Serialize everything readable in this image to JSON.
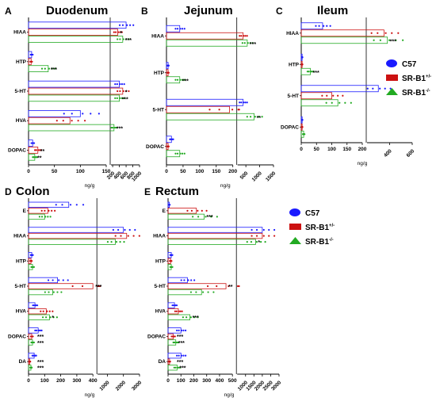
{
  "colors": {
    "C57": "#1a1aff",
    "SR-B1+/-": "#cc1111",
    "SR-B1-/-": "#22aa22"
  },
  "legend": {
    "entries": [
      {
        "key": "C57",
        "base": "C57",
        "sup": ""
      },
      {
        "key": "SR-B1+/-",
        "base": "SR-B1",
        "sup": "+/-"
      },
      {
        "key": "SR-B1-/-",
        "base": "SR-B1",
        "sup": "-/-"
      }
    ]
  },
  "chart_data": [
    {
      "type": "bar",
      "panel": "A",
      "title": "Duodenum",
      "xlabel": "ng/g",
      "orientation": "horizontal",
      "categories": [
        "HIAA",
        "HTP",
        "5-HT",
        "HVA",
        "DOPAC"
      ],
      "series": [
        {
          "name": "C57",
          "values": [
            600,
            6,
            400,
            100,
            8
          ]
        },
        {
          "name": "SR-B1+/-",
          "values": [
            350,
            5,
            500,
            80,
            18
          ]
        },
        {
          "name": "SR-B1-/-",
          "values": [
            500,
            38,
            400,
            240,
            12
          ]
        }
      ],
      "significance": [
        [
          "",
          "*",
          "***"
        ],
        [
          "",
          "",
          "***"
        ],
        [
          "",
          "*",
          "***"
        ],
        [
          "",
          "",
          "***"
        ],
        [
          "",
          "**",
          "**"
        ]
      ],
      "axis_segments": [
        {
          "range": [
            0,
            150
          ],
          "ticks": [
            0,
            50,
            100,
            150
          ]
        },
        {
          "range": [
            150,
            1000
          ],
          "ticks": [
            200,
            400,
            600,
            800,
            1000
          ]
        }
      ]
    },
    {
      "type": "bar",
      "panel": "B",
      "title": "Jejunum",
      "xlabel": "ng/g",
      "orientation": "horizontal",
      "categories": [
        "HIAA",
        "HTP",
        "5-HT",
        "DOPAC"
      ],
      "series": [
        {
          "name": "C57",
          "values": [
            40,
            5,
            400,
            15
          ]
        },
        {
          "name": "SR-B1+/-",
          "values": [
            400,
            5,
            190,
            5
          ]
        },
        {
          "name": "SR-B1-/-",
          "values": [
            550,
            40,
            800,
            40
          ]
        }
      ],
      "significance": [
        [
          "",
          "",
          "***"
        ],
        [
          "",
          "",
          "***"
        ],
        [
          "",
          "",
          "**"
        ],
        [
          "",
          "",
          ""
        ]
      ],
      "axis_segments": [
        {
          "range": [
            0,
            200
          ],
          "ticks": [
            0,
            50,
            100,
            150,
            200
          ]
        },
        {
          "range": [
            200,
            1500
          ],
          "ticks": [
            500,
            1000,
            1500
          ]
        }
      ]
    },
    {
      "type": "bar",
      "panel": "C",
      "title": "Ileum",
      "xlabel": "ng/g",
      "orientation": "horizontal",
      "categories": [
        "HIAA",
        "HTP",
        "5-HT",
        "DOPAC"
      ],
      "series": [
        {
          "name": "C57",
          "values": [
            70,
            3,
            300,
            3
          ]
        },
        {
          "name": "SR-B1+/-",
          "values": [
            350,
            3,
            100,
            3
          ]
        },
        {
          "name": "SR-B1-/-",
          "values": [
            380,
            30,
            120,
            8
          ]
        }
      ],
      "significance": [
        [
          "",
          "",
          "***"
        ],
        [
          "",
          "",
          "***"
        ],
        [
          "",
          "",
          ""
        ],
        [
          "",
          "",
          ""
        ]
      ],
      "axis_segments": [
        {
          "range": [
            0,
            200
          ],
          "ticks": [
            0,
            50,
            100,
            150,
            200
          ]
        },
        {
          "range": [
            200,
            600
          ],
          "ticks": [
            400,
            600
          ]
        }
      ]
    },
    {
      "type": "bar",
      "panel": "D",
      "title": "Colon",
      "xlabel": "ng/g",
      "orientation": "horizontal",
      "categories": [
        "E",
        "HIAA",
        "HTP",
        "5-HT",
        "HVA",
        "DOPAC",
        "DA"
      ],
      "series": [
        {
          "name": "C57",
          "values": [
            250,
            2000,
            20,
            180,
            40,
            60,
            35
          ]
        },
        {
          "name": "SR-B1+/-",
          "values": [
            120,
            2200,
            15,
            400,
            110,
            20,
            8
          ]
        },
        {
          "name": "SR-B1-/-",
          "values": [
            100,
            1500,
            25,
            150,
            130,
            25,
            15
          ]
        }
      ],
      "significance": [
        [
          "",
          "",
          ""
        ],
        [
          "",
          "",
          ""
        ],
        [
          "",
          "",
          ""
        ],
        [
          "",
          "***",
          ""
        ],
        [
          "",
          "",
          "*"
        ],
        [
          "",
          "***",
          "***"
        ],
        [
          "",
          "***",
          "***"
        ]
      ],
      "axis_segments": [
        {
          "range": [
            0,
            400
          ],
          "ticks": [
            0,
            100,
            200,
            300,
            400
          ]
        },
        {
          "range": [
            400,
            3000
          ],
          "ticks": [
            1000,
            2000,
            3000
          ]
        }
      ]
    },
    {
      "type": "bar",
      "panel": "E",
      "title": "Rectum",
      "xlabel": "ng/g",
      "orientation": "horizontal",
      "categories": [
        "E",
        "HIAA",
        "HTP",
        "5-HT",
        "HVA",
        "DOPAC",
        "DA"
      ],
      "series": [
        {
          "name": "C57",
          "values": [
            10,
            2000,
            25,
            150,
            50,
            100,
            100
          ]
        },
        {
          "name": "SR-B1+/-",
          "values": [
            220,
            2000,
            20,
            450,
            80,
            40,
            12
          ]
        },
        {
          "name": "SR-B1-/-",
          "values": [
            280,
            1600,
            25,
            260,
            170,
            60,
            70
          ]
        }
      ],
      "significance": [
        [
          "",
          "",
          "***"
        ],
        [
          "",
          "",
          "*"
        ],
        [
          "",
          "",
          ""
        ],
        [
          "",
          "**",
          ""
        ],
        [
          "",
          "",
          "***"
        ],
        [
          "",
          "***",
          "***"
        ],
        [
          "",
          "***",
          "***"
        ]
      ],
      "axis_segments": [
        {
          "range": [
            0,
            500
          ],
          "ticks": [
            0,
            100,
            200,
            300,
            400,
            500
          ]
        },
        {
          "range": [
            500,
            3000
          ],
          "ticks": [
            1000,
            1500,
            2000,
            2500,
            3000
          ]
        }
      ]
    }
  ]
}
